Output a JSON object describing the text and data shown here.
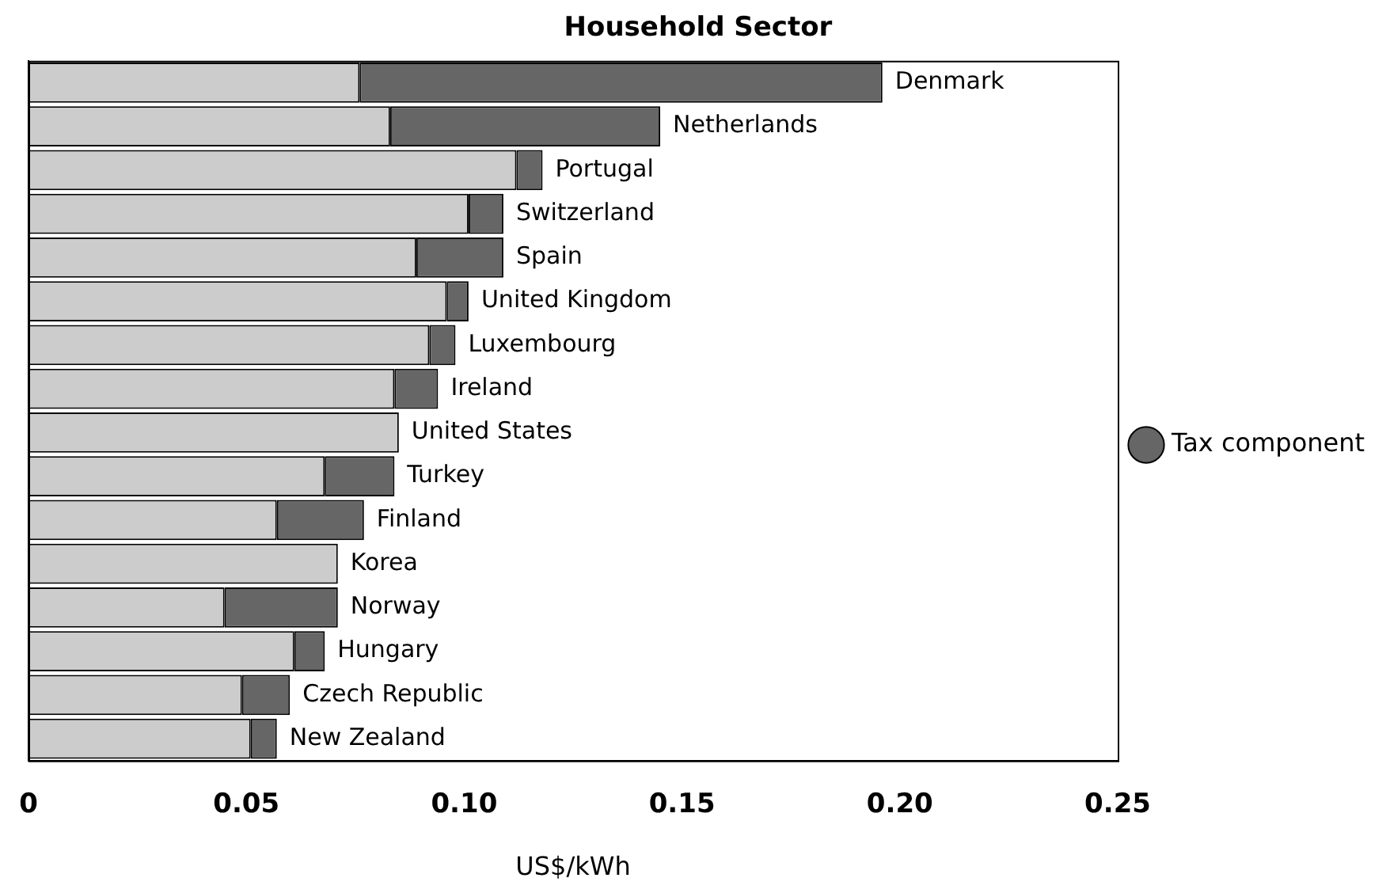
{
  "chart_data": {
    "type": "bar",
    "title": "Household Sector",
    "xlabel": "US$/kWh",
    "orientation": "horizontal",
    "stacked": true,
    "legend": "right",
    "grid": false,
    "categories": [
      "Denmark",
      "Netherlands",
      "Portugal",
      "Switzerland",
      "Spain",
      "United Kingdom",
      "Luxembourg",
      "Ireland",
      "United States",
      "Turkey",
      "Finland",
      "Korea",
      "Norway",
      "Hungary",
      "Czech Republic",
      "New Zealand"
    ],
    "series": [
      {
        "color": "#cccccc",
        "values": [
          0.076,
          0.083,
          0.112,
          0.101,
          0.089,
          0.096,
          0.092,
          0.084,
          0.085,
          0.068,
          0.057,
          0.071,
          0.045,
          0.061,
          0.049,
          0.051
        ]
      },
      {
        "name": "Tax component",
        "color": "#666666",
        "values": [
          0.12,
          0.062,
          0.006,
          0.008,
          0.02,
          0.005,
          0.006,
          0.01,
          0,
          0.016,
          0.02,
          0,
          0.026,
          0.007,
          0.011,
          0.006
        ]
      }
    ],
    "xlim": [
      0,
      0.25
    ],
    "xticks": [
      0,
      0.05,
      {
        "value": 0.1,
        "label": "0.10"
      },
      0.15,
      {
        "value": 0.2,
        "label": "0.20"
      },
      0.25
    ]
  }
}
